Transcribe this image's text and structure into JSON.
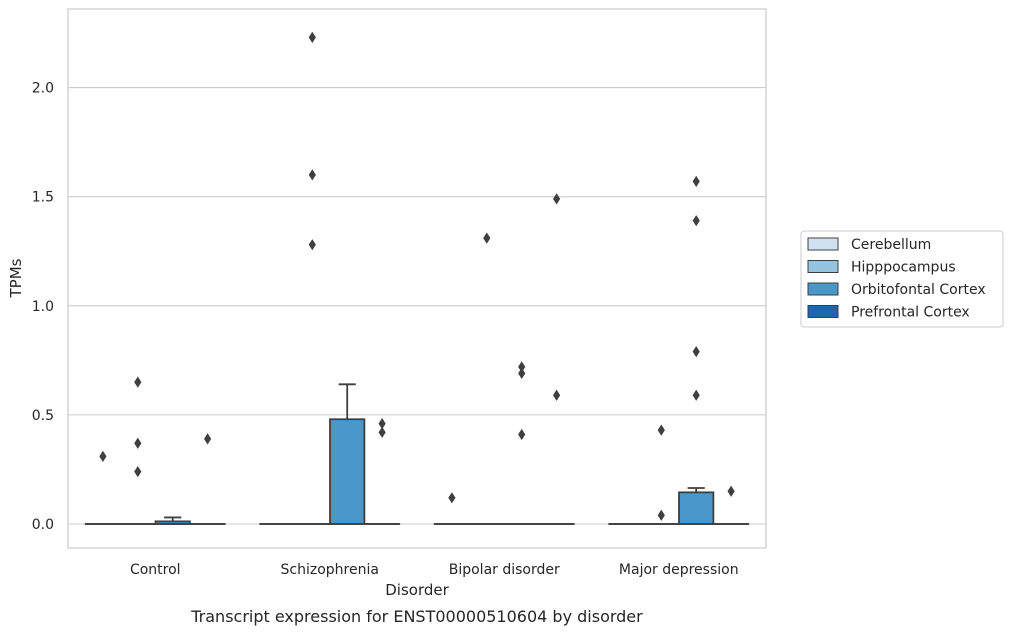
{
  "chart_data": {
    "type": "box",
    "title": "",
    "caption": "Transcript expression for ENST00000510604 by disorder",
    "xlabel": "Disorder",
    "ylabel": "TPMs",
    "categories": [
      "Control",
      "Schizophrenia",
      "Bipolar disorder",
      "Major depression"
    ],
    "ylim": [
      -0.11,
      2.36
    ],
    "yticks": [
      0.0,
      0.5,
      1.0,
      1.5,
      2.0
    ],
    "ytick_labels": [
      "0.0",
      "0.5",
      "1.0",
      "1.5",
      "2.0"
    ],
    "grid": "horizontal",
    "legend_position": "right",
    "series": [
      {
        "name": "Cerebellum",
        "color": "#d0e1f2",
        "boxes": [
          {
            "q1": 0,
            "median": 0,
            "q3": 0,
            "whisker_low": 0,
            "whisker_high": 0,
            "outliers": [
              0.31
            ]
          },
          {
            "q1": 0,
            "median": 0,
            "q3": 0,
            "whisker_low": 0,
            "whisker_high": 0,
            "outliers": []
          },
          {
            "q1": 0,
            "median": 0,
            "q3": 0,
            "whisker_low": 0,
            "whisker_high": 0,
            "outliers": [
              0.12
            ]
          },
          {
            "q1": 0,
            "median": 0,
            "q3": 0,
            "whisker_low": 0,
            "whisker_high": 0,
            "outliers": []
          }
        ]
      },
      {
        "name": "Hipppocampus",
        "color": "#94c4df",
        "boxes": [
          {
            "q1": 0,
            "median": 0,
            "q3": 0,
            "whisker_low": 0,
            "whisker_high": 0,
            "outliers": [
              0.24,
              0.37,
              0.65
            ]
          },
          {
            "q1": 0,
            "median": 0,
            "q3": 0,
            "whisker_low": 0,
            "whisker_high": 0,
            "outliers": [
              1.28,
              1.6,
              2.23
            ]
          },
          {
            "q1": 0,
            "median": 0,
            "q3": 0,
            "whisker_low": 0,
            "whisker_high": 0,
            "outliers": [
              1.31
            ]
          },
          {
            "q1": 0,
            "median": 0,
            "q3": 0,
            "whisker_low": 0,
            "whisker_high": 0,
            "outliers": [
              0.04,
              0.43
            ]
          }
        ]
      },
      {
        "name": "Orbitofontal Cortex",
        "color": "#4a98c9",
        "boxes": [
          {
            "q1": 0,
            "median": 0,
            "q3": 0.012,
            "whisker_low": 0,
            "whisker_high": 0.03,
            "outliers": []
          },
          {
            "q1": 0,
            "median": 0,
            "q3": 0.48,
            "whisker_low": 0,
            "whisker_high": 0.64,
            "outliers": []
          },
          {
            "q1": 0,
            "median": 0,
            "q3": 0,
            "whisker_low": 0,
            "whisker_high": 0,
            "outliers": [
              0.41,
              0.69,
              0.72
            ]
          },
          {
            "q1": 0,
            "median": 0,
            "q3": 0.145,
            "whisker_low": 0,
            "whisker_high": 0.165,
            "outliers": [
              0.59,
              0.79,
              1.39,
              1.57
            ]
          }
        ]
      },
      {
        "name": "Prefrontal Cortex",
        "color": "#2464a8",
        "boxes": [
          {
            "q1": 0,
            "median": 0,
            "q3": 0,
            "whisker_low": 0,
            "whisker_high": 0,
            "outliers": [
              0.39
            ]
          },
          {
            "q1": 0,
            "median": 0,
            "q3": 0,
            "whisker_low": 0,
            "whisker_high": 0,
            "outliers": [
              0.42,
              0.46
            ]
          },
          {
            "q1": 0,
            "median": 0,
            "q3": 0,
            "whisker_low": 0,
            "whisker_high": 0,
            "outliers": [
              0.59,
              1.49
            ]
          },
          {
            "q1": 0,
            "median": 0,
            "q3": 0,
            "whisker_low": 0,
            "whisker_high": 0,
            "outliers": [
              0.15
            ]
          }
        ]
      }
    ]
  }
}
